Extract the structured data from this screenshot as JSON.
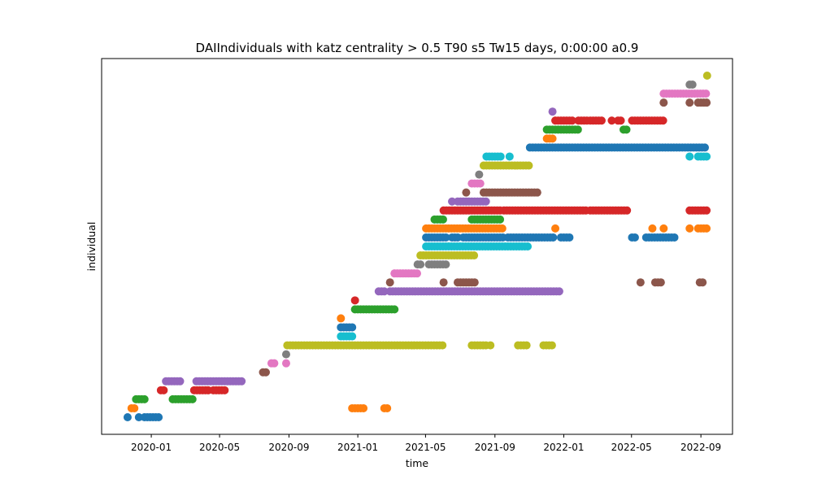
{
  "chart_data": {
    "type": "scatter",
    "title": "DAIIndividuals with katz centrality > 0.5 T90 s5 Tw15 days, 0:00:00 a0.9",
    "xlabel": "time",
    "ylabel": "individual",
    "x_scale": "date",
    "xlim": [
      "2019-10-05",
      "2022-10-27"
    ],
    "x_ticks": [
      "2020-01-01",
      "2020-05-01",
      "2020-09-01",
      "2021-01-01",
      "2021-05-01",
      "2021-09-01",
      "2022-01-01",
      "2022-05-01",
      "2022-09-01"
    ],
    "x_tick_labels": [
      "2020-01",
      "2020-05",
      "2020-09",
      "2021-01",
      "2021-05",
      "2021-09",
      "2022-01",
      "2022-05",
      "2022-09"
    ],
    "y_ticks_shown": false,
    "grid": false,
    "legend": "none",
    "colors": [
      "#1f77b4",
      "#ff7f0e",
      "#2ca02c",
      "#d62728",
      "#9467bd",
      "#8c564b",
      "#e377c2",
      "#7f7f7f",
      "#bcbd22",
      "#17becf"
    ],
    "series": [
      {
        "y": 0,
        "runs": [
          [
            "2019-11-20",
            "2019-11-20"
          ],
          [
            "2019-12-10",
            "2019-12-10"
          ],
          [
            "2019-12-20",
            "2020-01-15"
          ]
        ]
      },
      {
        "y": 1,
        "runs": [
          [
            "2019-11-27",
            "2019-12-02"
          ],
          [
            "2020-12-22",
            "2021-01-15"
          ],
          [
            "2021-02-17",
            "2021-02-22"
          ]
        ]
      },
      {
        "y": 2,
        "runs": [
          [
            "2019-12-05",
            "2019-12-22"
          ],
          [
            "2020-02-08",
            "2020-03-14"
          ]
        ]
      },
      {
        "y": 3,
        "runs": [
          [
            "2020-01-18",
            "2020-01-23"
          ],
          [
            "2020-03-17",
            "2020-04-12"
          ],
          [
            "2020-04-20",
            "2020-05-13"
          ]
        ]
      },
      {
        "y": 4,
        "runs": [
          [
            "2020-01-27",
            "2020-02-22"
          ],
          [
            "2020-03-21",
            "2020-06-12"
          ]
        ]
      },
      {
        "y": 5,
        "runs": [
          [
            "2020-07-17",
            "2020-07-23"
          ]
        ]
      },
      {
        "y": 6,
        "runs": [
          [
            "2020-08-01",
            "2020-08-07"
          ],
          [
            "2020-08-27",
            "2020-08-29"
          ]
        ]
      },
      {
        "y": 7,
        "runs": [
          [
            "2020-08-27",
            "2020-08-29"
          ]
        ]
      },
      {
        "y": 8,
        "runs": [
          [
            "2020-08-29",
            "2021-06-02"
          ],
          [
            "2021-07-22",
            "2021-08-19"
          ],
          [
            "2021-08-24",
            "2021-08-28"
          ],
          [
            "2021-10-12",
            "2021-10-28"
          ],
          [
            "2021-11-26",
            "2021-12-12"
          ]
        ]
      },
      {
        "y": 9,
        "runs": [
          [
            "2020-12-02",
            "2020-12-22"
          ]
        ]
      },
      {
        "y": 10,
        "runs": [
          [
            "2020-12-02",
            "2020-12-22"
          ]
        ]
      },
      {
        "y": 11,
        "runs": [
          [
            "2020-12-02",
            "2020-12-02"
          ]
        ]
      },
      {
        "y": 12,
        "runs": [
          [
            "2020-12-27",
            "2021-03-07"
          ]
        ]
      },
      {
        "y": 13,
        "runs": [
          [
            "2020-12-27",
            "2020-12-31"
          ]
        ]
      },
      {
        "y": 14,
        "runs": [
          [
            "2021-02-07",
            "2021-02-17"
          ],
          [
            "2021-02-27",
            "2021-12-28"
          ]
        ]
      },
      {
        "y": 15,
        "runs": [
          [
            "2021-02-27",
            "2021-02-27"
          ],
          [
            "2021-06-02",
            "2021-06-02"
          ],
          [
            "2021-06-27",
            "2021-07-27"
          ],
          [
            "2022-05-17",
            "2022-05-17"
          ],
          [
            "2022-06-12",
            "2022-06-26"
          ],
          [
            "2022-08-30",
            "2022-09-05"
          ]
        ]
      },
      {
        "y": 16,
        "runs": [
          [
            "2021-03-07",
            "2021-04-17"
          ]
        ]
      },
      {
        "y": 17,
        "runs": [
          [
            "2021-04-17",
            "2021-04-22"
          ],
          [
            "2021-05-07",
            "2021-06-07"
          ]
        ]
      },
      {
        "y": 18,
        "runs": [
          [
            "2021-04-22",
            "2021-07-27"
          ]
        ]
      },
      {
        "y": 19,
        "runs": [
          [
            "2021-05-02",
            "2021-11-02"
          ]
        ]
      },
      {
        "y": 20,
        "runs": [
          [
            "2021-05-02",
            "2021-06-07"
          ],
          [
            "2021-06-17",
            "2021-06-27"
          ],
          [
            "2021-07-07",
            "2021-09-17"
          ],
          [
            "2021-09-24",
            "2021-12-17"
          ],
          [
            "2021-12-27",
            "2022-01-12"
          ],
          [
            "2022-05-02",
            "2022-05-07"
          ],
          [
            "2022-05-27",
            "2022-07-17"
          ]
        ]
      },
      {
        "y": 21,
        "runs": [
          [
            "2021-05-02",
            "2021-09-17"
          ],
          [
            "2021-12-17",
            "2021-12-17"
          ],
          [
            "2022-06-07",
            "2022-06-07"
          ],
          [
            "2022-06-27",
            "2022-06-27"
          ],
          [
            "2022-08-12",
            "2022-08-12"
          ],
          [
            "2022-08-27",
            "2022-09-12"
          ]
        ]
      },
      {
        "y": 22,
        "runs": [
          [
            "2021-05-17",
            "2021-06-02"
          ],
          [
            "2021-07-22",
            "2021-09-12"
          ]
        ]
      },
      {
        "y": 23,
        "runs": [
          [
            "2021-06-02",
            "2021-09-12"
          ],
          [
            "2021-09-17",
            "2022-02-12"
          ],
          [
            "2022-02-17",
            "2022-04-27"
          ],
          [
            "2022-08-12",
            "2022-09-12"
          ]
        ]
      },
      {
        "y": 24,
        "runs": [
          [
            "2021-06-17",
            "2021-06-17"
          ],
          [
            "2021-06-27",
            "2021-08-17"
          ]
        ]
      },
      {
        "y": 25,
        "runs": [
          [
            "2021-07-12",
            "2021-07-12"
          ],
          [
            "2021-08-12",
            "2021-11-17"
          ]
        ]
      },
      {
        "y": 26,
        "runs": [
          [
            "2021-07-22",
            "2021-08-07"
          ]
        ]
      },
      {
        "y": 27,
        "runs": [
          [
            "2021-08-04",
            "2021-08-04"
          ]
        ]
      },
      {
        "y": 28,
        "runs": [
          [
            "2021-08-12",
            "2021-11-02"
          ]
        ]
      },
      {
        "y": 29,
        "runs": [
          [
            "2021-08-17",
            "2021-09-12"
          ],
          [
            "2021-09-27",
            "2021-09-27"
          ],
          [
            "2022-08-12",
            "2022-08-16"
          ],
          [
            "2022-08-27",
            "2022-09-12"
          ]
        ]
      },
      {
        "y": 30,
        "runs": [
          [
            "2021-11-02",
            "2022-09-12"
          ]
        ]
      },
      {
        "y": 31,
        "runs": [
          [
            "2021-12-02",
            "2021-12-12"
          ]
        ]
      },
      {
        "y": 32,
        "runs": [
          [
            "2021-12-02",
            "2022-01-27"
          ],
          [
            "2022-04-17",
            "2022-04-22"
          ]
        ]
      },
      {
        "y": 33,
        "runs": [
          [
            "2021-12-17",
            "2022-01-17"
          ],
          [
            "2022-01-27",
            "2022-02-12"
          ],
          [
            "2022-02-17",
            "2022-03-12"
          ],
          [
            "2022-03-27",
            "2022-03-27"
          ],
          [
            "2022-04-07",
            "2022-04-12"
          ],
          [
            "2022-05-02",
            "2022-06-27"
          ]
        ]
      },
      {
        "y": 34,
        "runs": [
          [
            "2021-12-12",
            "2021-12-12"
          ]
        ]
      },
      {
        "y": 35,
        "runs": [
          [
            "2022-06-27",
            "2022-06-27"
          ],
          [
            "2022-08-12",
            "2022-08-12"
          ],
          [
            "2022-08-27",
            "2022-09-12"
          ]
        ]
      },
      {
        "y": 36,
        "runs": [
          [
            "2022-06-27",
            "2022-09-12"
          ]
        ]
      },
      {
        "y": 37,
        "runs": [
          [
            "2022-08-12",
            "2022-08-20"
          ]
        ]
      },
      {
        "y": 38,
        "runs": [
          [
            "2022-09-12",
            "2022-09-12"
          ]
        ]
      }
    ]
  }
}
